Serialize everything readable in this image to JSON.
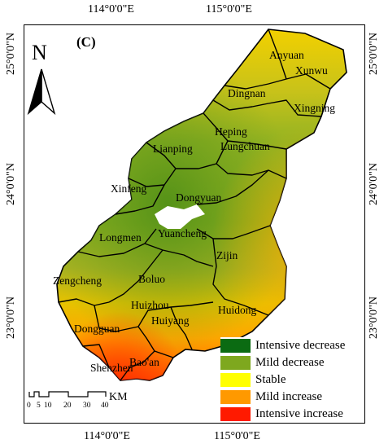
{
  "panel_label": "(C)",
  "north_arrow": {
    "letter": "N"
  },
  "axes": {
    "top": [
      "114°0'0\"E",
      "115°0'0\"E"
    ],
    "bottom": [
      "114°0'0\"E",
      "115°0'0\"E"
    ],
    "left": [
      "25°0'0\"N",
      "24°0'0\"N",
      "23°0'0\"N"
    ],
    "right": [
      "25°0'0\"N",
      "24°0'0\"N",
      "23°0'0\"N"
    ]
  },
  "regions": [
    "Anyuan",
    "Xunwu",
    "Dingnan",
    "Xingning",
    "Heping",
    "Lungchuan",
    "Lianping",
    "Xinfeng",
    "Dongyuan",
    "Yuancheng",
    "Longmen",
    "Zijin",
    "Zengcheng",
    "Boluo",
    "Huizhou",
    "Huiyang",
    "Huidong",
    "Dongguan",
    "Shenzhen",
    "Bao'an"
  ],
  "scale_bar": {
    "ticks": [
      "0",
      "5",
      "10",
      "20",
      "30",
      "40"
    ],
    "unit": "KM"
  },
  "legend": [
    {
      "label": "Intensive decrease",
      "color": "#0b6b12"
    },
    {
      "label": "Mild decrease",
      "color": "#7ea81e"
    },
    {
      "label": "Stable",
      "color": "#ffff00"
    },
    {
      "label": "Mild increase",
      "color": "#ff9900"
    },
    {
      "label": "Intensive increase",
      "color": "#ff1a00"
    }
  ]
}
